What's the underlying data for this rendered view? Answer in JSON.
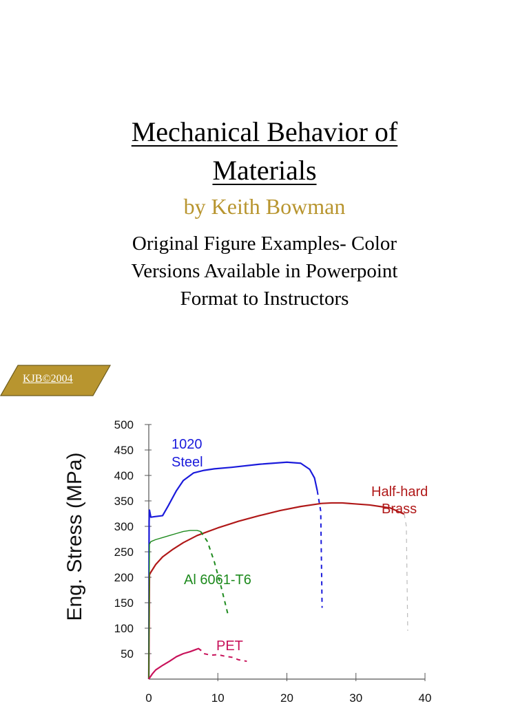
{
  "slide": {
    "title_line1": "Mechanical Behavior of",
    "title_line2": "Materials",
    "author": "by Keith Bowman",
    "subtitle_lines": [
      "Original Figure Examples- Color",
      "Versions Available in Powerpoint",
      "Format to Instructors"
    ],
    "badge": "KJB©2004",
    "colors": {
      "author": "#b8952f",
      "badge_fill": "#b8952f"
    }
  },
  "chart_data": {
    "type": "line",
    "title": "",
    "xlabel": "",
    "ylabel": "Eng. Stress (MPa)",
    "xlim": [
      0,
      40
    ],
    "ylim": [
      0,
      500
    ],
    "xticks": [
      0,
      10,
      20,
      30,
      40
    ],
    "yticks": [
      50,
      100,
      150,
      200,
      250,
      300,
      350,
      400,
      450,
      500
    ],
    "grid": false,
    "legend": "inline labels",
    "series": [
      {
        "name": "1020 Steel",
        "label_lines": [
          "1020",
          "Steel"
        ],
        "color": "#1a1adb",
        "x": [
          0,
          0.05,
          0.1,
          0.3,
          0.8,
          2.0,
          2.8,
          4,
          5,
          6.5,
          8,
          9.5,
          12,
          16,
          20,
          22,
          23.3,
          24,
          24.4
        ],
        "y": [
          0,
          310,
          332,
          318,
          319,
          321,
          340,
          370,
          390,
          405,
          410,
          413,
          416,
          422,
          426,
          424,
          412,
          395,
          370
        ],
        "fracture_x": [
          24.4,
          24.9,
          25.1
        ],
        "fracture_y": [
          370,
          330,
          140
        ]
      },
      {
        "name": "Half-hard Brass",
        "label_lines": [
          "Half-hard",
          "Brass"
        ],
        "color": "#b01818",
        "x": [
          0,
          0.1,
          0.3,
          1,
          2,
          3.5,
          5,
          7,
          10,
          13,
          16,
          19,
          22,
          25,
          26.5,
          28,
          32,
          35,
          37
        ],
        "y": [
          0,
          205,
          210,
          225,
          240,
          255,
          268,
          282,
          297,
          310,
          321,
          331,
          339,
          345,
          346,
          346,
          342,
          336,
          324
        ],
        "fracture_x": [
          37,
          37.3,
          37.5
        ],
        "fracture_y": [
          324,
          300,
          95
        ]
      },
      {
        "name": "Al 6061-T6",
        "label_lines": [
          "Al 6061-T6"
        ],
        "color": "#1d8a1d",
        "x": [
          0,
          0.1,
          0.3,
          1,
          2,
          3,
          4,
          5,
          6,
          7,
          7.5
        ],
        "y": [
          0,
          265,
          270,
          274,
          278,
          282,
          286,
          290,
          292,
          292,
          290
        ],
        "fracture_x": [
          7.5,
          8.5,
          9.5,
          10.5,
          11.5
        ],
        "fracture_y": [
          290,
          270,
          230,
          180,
          125
        ]
      },
      {
        "name": "PET",
        "label_lines": [
          "PET"
        ],
        "color": "#c8125a",
        "x": [
          0,
          0.5,
          1,
          2,
          3,
          4,
          5,
          6,
          6.8,
          7.2,
          7.6
        ],
        "y": [
          0,
          10,
          18,
          27,
          35,
          44,
          50,
          54,
          58,
          60,
          56
        ],
        "fracture_x": [
          8,
          9,
          10,
          11,
          12,
          13,
          14.2
        ],
        "fracture_y": [
          50,
          47,
          48,
          45,
          43,
          38,
          35
        ]
      }
    ]
  }
}
